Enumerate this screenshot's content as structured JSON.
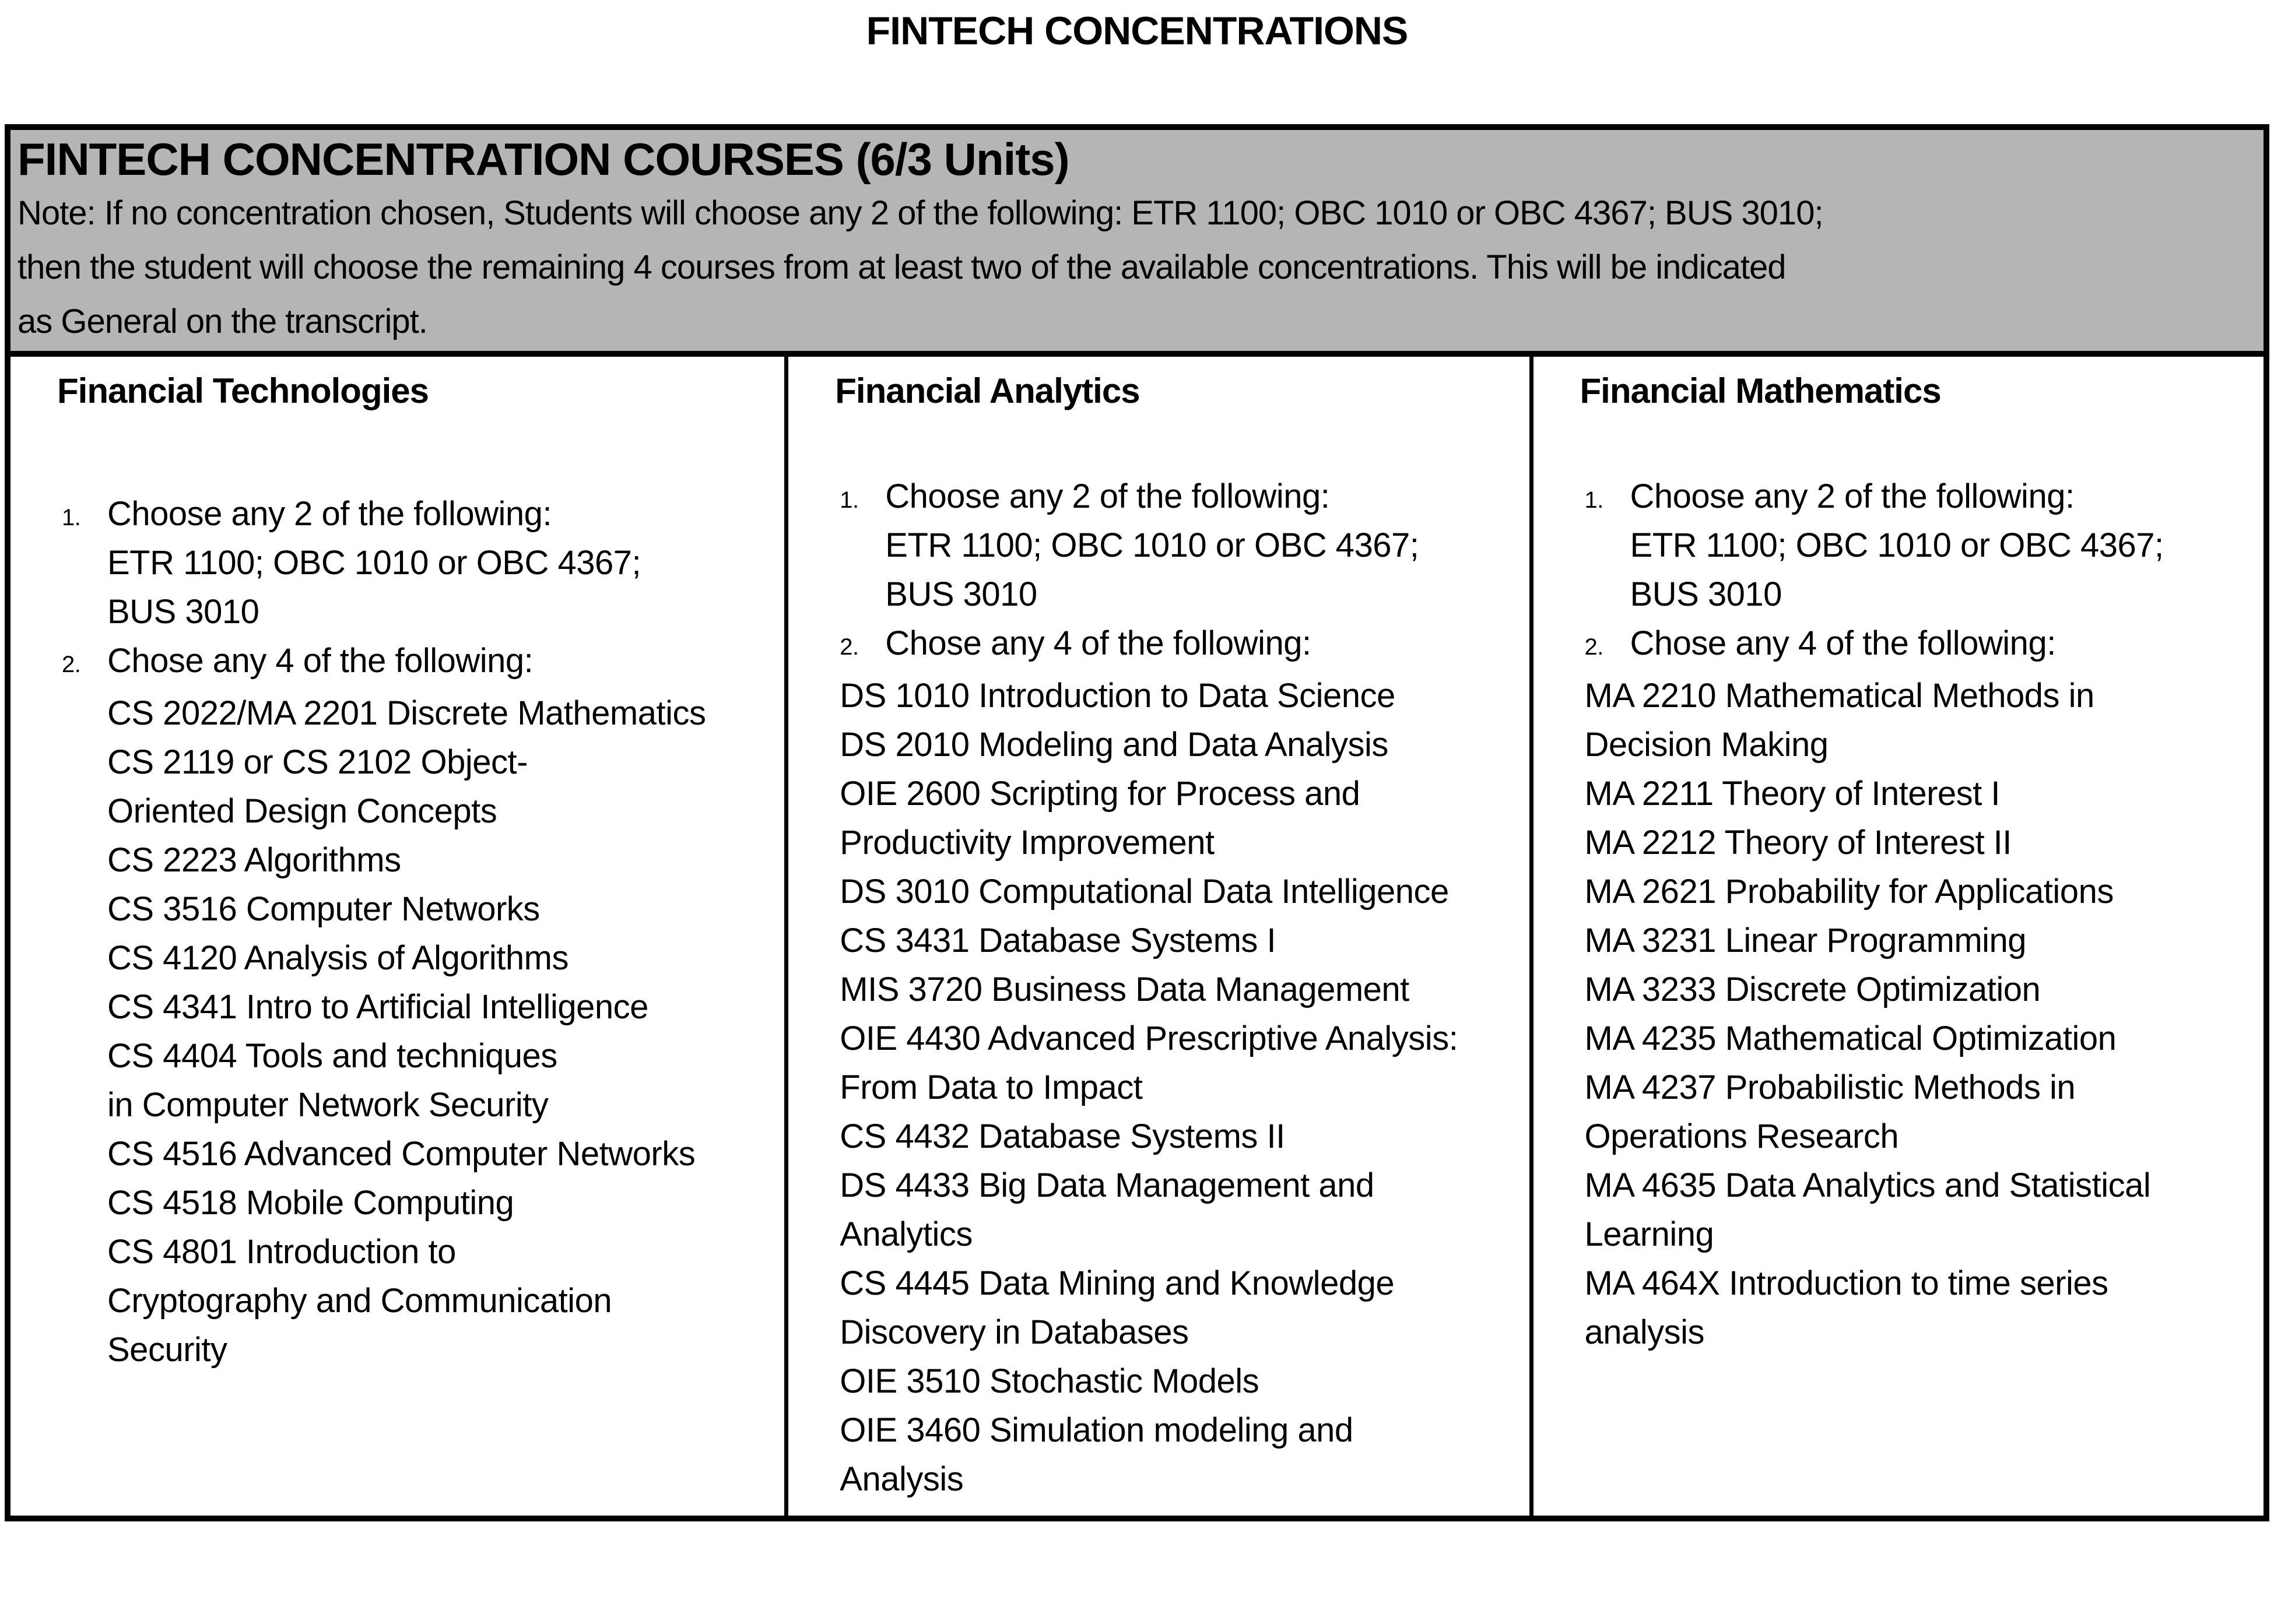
{
  "page_title": "FINTECH CONCENTRATIONS",
  "header": {
    "title": "FINTECH CONCENTRATION COURSES (6/3 Units)",
    "note_lines": [
      "Note: If no concentration chosen, Students will choose any 2 of the following: ETR 1100; OBC 1010 or OBC 4367; BUS 3010;",
      "then the student will choose the remaining 4 courses from at least two of the available concentrations. This will be indicated",
      "as General on the transcript."
    ],
    "background_color": "#b5b5b5"
  },
  "columns": [
    {
      "title": "Financial Technologies",
      "items": [
        {
          "number": "1.",
          "lines": [
            "Choose any 2 of the following:",
            "ETR 1100; OBC 1010 or OBC 4367;",
            "BUS 3010"
          ]
        },
        {
          "number": "2.",
          "lines": [
            "Chose any 4 of the following:"
          ]
        }
      ],
      "courses": [
        "CS 2022/MA 2201 Discrete Mathematics",
        "CS 2119 or CS 2102 Object-",
        "Oriented Design Concepts",
        "CS 2223 Algorithms",
        "CS 3516 Computer Networks",
        "CS 4120 Analysis of Algorithms",
        "CS 4341 Intro to Artificial Intelligence",
        "CS 4404 Tools and techniques",
        "in Computer Network Security",
        "CS 4516 Advanced Computer Networks",
        "CS 4518 Mobile Computing",
        "CS 4801 Introduction to",
        "Cryptography and Communication",
        "Security"
      ]
    },
    {
      "title": "Financial Analytics",
      "items": [
        {
          "number": "1.",
          "lines": [
            "Choose any 2 of the following:",
            "ETR 1100; OBC 1010 or OBC 4367;",
            "BUS 3010"
          ]
        },
        {
          "number": "2.",
          "lines": [
            "Chose any 4 of the following:"
          ]
        }
      ],
      "courses": [
        "DS 1010 Introduction to Data Science",
        "DS 2010 Modeling and Data Analysis",
        "OIE 2600 Scripting for Process and",
        "Productivity Improvement",
        "DS 3010 Computational Data Intelligence",
        "CS 3431 Database Systems I",
        "MIS 3720 Business Data Management",
        "OIE 4430 Advanced Prescriptive Analysis:",
        "From Data to Impact",
        "CS 4432 Database Systems II",
        "DS 4433 Big Data Management and",
        "Analytics",
        "CS 4445 Data Mining and Knowledge",
        "Discovery in Databases",
        "OIE 3510 Stochastic Models",
        "OIE 3460 Simulation modeling and",
        "Analysis"
      ]
    },
    {
      "title": "Financial Mathematics",
      "items": [
        {
          "number": "1.",
          "lines": [
            "Choose any 2 of the following:",
            "ETR 1100; OBC 1010 or OBC 4367;",
            "BUS 3010"
          ]
        },
        {
          "number": "2.",
          "lines": [
            "Chose any 4 of the following:"
          ]
        }
      ],
      "courses": [
        "MA 2210 Mathematical Methods in",
        "Decision Making",
        "MA 2211 Theory of Interest I",
        "MA 2212 Theory of Interest II",
        "MA 2621 Probability for Applications",
        "MA 3231 Linear Programming",
        "MA 3233 Discrete Optimization",
        "MA 4235 Mathematical Optimization",
        "MA 4237 Probabilistic Methods in",
        "Operations Research",
        "MA 4635 Data Analytics and Statistical",
        "Learning",
        "MA 464X Introduction to time series",
        "analysis"
      ]
    }
  ]
}
